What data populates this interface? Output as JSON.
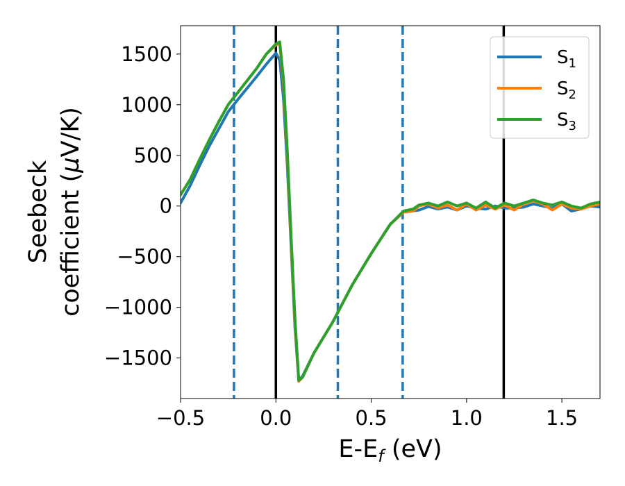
{
  "chart_data": {
    "type": "line",
    "title": "",
    "xlabel": "E-E",
    "xlabel_sub": "f",
    "xlabel_unit": " (eV)",
    "ylabel_line1": "Seebeck",
    "ylabel_line2": "coefficient  (",
    "ylabel_mu": "μ",
    "ylabel_unit": "V/K)",
    "xlim": [
      -0.5,
      1.7
    ],
    "ylim": [
      -1900,
      1780
    ],
    "xticks": [
      -0.5,
      0.0,
      0.5,
      1.0,
      1.5
    ],
    "xtick_labels": [
      "−0.5",
      "0.0",
      "0.5",
      "1.0",
      "1.5"
    ],
    "yticks": [
      -1500,
      -1000,
      -500,
      0,
      500,
      1000,
      1500
    ],
    "ytick_labels": [
      "−1500",
      "−1000",
      "−500",
      "0",
      "500",
      "1000",
      "1500"
    ],
    "grid": false,
    "legend_position": "top-right",
    "vertical_lines": [
      {
        "x": -0.22,
        "style": "dashed",
        "color": "#1f77b4"
      },
      {
        "x": 0.0,
        "style": "solid",
        "color": "#000000"
      },
      {
        "x": 0.325,
        "style": "dashed",
        "color": "#1f77b4"
      },
      {
        "x": 0.665,
        "style": "dashed",
        "color": "#1f77b4"
      },
      {
        "x": 1.195,
        "style": "solid",
        "color": "#000000"
      }
    ],
    "series": [
      {
        "name": "S",
        "sub": "1",
        "color": "#1f77b4",
        "points": [
          [
            -0.5,
            30
          ],
          [
            -0.45,
            200
          ],
          [
            -0.4,
            400
          ],
          [
            -0.35,
            590
          ],
          [
            -0.3,
            760
          ],
          [
            -0.25,
            930
          ],
          [
            -0.2,
            1050
          ],
          [
            -0.1,
            1280
          ],
          [
            -0.05,
            1400
          ],
          [
            0.0,
            1510
          ],
          [
            0.02,
            1440
          ],
          [
            0.04,
            1050
          ],
          [
            0.06,
            400
          ],
          [
            0.08,
            -400
          ],
          [
            0.1,
            -1200
          ],
          [
            0.12,
            -1720
          ],
          [
            0.14,
            -1680
          ],
          [
            0.2,
            -1450
          ],
          [
            0.3,
            -1140
          ],
          [
            0.4,
            -780
          ],
          [
            0.5,
            -470
          ],
          [
            0.6,
            -180
          ],
          [
            0.67,
            -60
          ],
          [
            0.75,
            -40
          ],
          [
            0.8,
            -5
          ],
          [
            0.85,
            -30
          ],
          [
            0.9,
            -10
          ],
          [
            0.95,
            -40
          ],
          [
            1.0,
            0
          ],
          [
            1.05,
            -20
          ],
          [
            1.1,
            -30
          ],
          [
            1.15,
            0
          ],
          [
            1.2,
            -20
          ],
          [
            1.25,
            -20
          ],
          [
            1.3,
            -10
          ],
          [
            1.35,
            20
          ],
          [
            1.4,
            0
          ],
          [
            1.45,
            -20
          ],
          [
            1.5,
            20
          ],
          [
            1.55,
            -50
          ],
          [
            1.6,
            -30
          ],
          [
            1.65,
            0
          ],
          [
            1.7,
            -10
          ]
        ]
      },
      {
        "name": "S",
        "sub": "2",
        "color": "#ff7f0e",
        "points": [
          [
            -0.5,
            110
          ],
          [
            -0.45,
            260
          ],
          [
            -0.4,
            460
          ],
          [
            -0.35,
            650
          ],
          [
            -0.3,
            830
          ],
          [
            -0.25,
            1000
          ],
          [
            -0.2,
            1120
          ],
          [
            -0.1,
            1360
          ],
          [
            -0.05,
            1500
          ],
          [
            0.0,
            1590
          ],
          [
            0.02,
            1600
          ],
          [
            0.04,
            1200
          ],
          [
            0.06,
            500
          ],
          [
            0.08,
            -350
          ],
          [
            0.1,
            -1150
          ],
          [
            0.12,
            -1730
          ],
          [
            0.14,
            -1690
          ],
          [
            0.2,
            -1450
          ],
          [
            0.3,
            -1140
          ],
          [
            0.4,
            -780
          ],
          [
            0.5,
            -470
          ],
          [
            0.6,
            -180
          ],
          [
            0.67,
            -60
          ],
          [
            0.72,
            -50
          ],
          [
            0.75,
            0
          ],
          [
            0.8,
            20
          ],
          [
            0.85,
            -20
          ],
          [
            0.9,
            10
          ],
          [
            0.95,
            -40
          ],
          [
            1.0,
            20
          ],
          [
            1.05,
            -40
          ],
          [
            1.1,
            10
          ],
          [
            1.15,
            -30
          ],
          [
            1.2,
            10
          ],
          [
            1.25,
            -40
          ],
          [
            1.3,
            20
          ],
          [
            1.35,
            50
          ],
          [
            1.4,
            20
          ],
          [
            1.45,
            -40
          ],
          [
            1.5,
            20
          ],
          [
            1.55,
            -20
          ],
          [
            1.6,
            -30
          ],
          [
            1.65,
            0
          ],
          [
            1.7,
            20
          ]
        ]
      },
      {
        "name": "S",
        "sub": "3",
        "color": "#2ca02c",
        "points": [
          [
            -0.5,
            110
          ],
          [
            -0.45,
            260
          ],
          [
            -0.4,
            460
          ],
          [
            -0.35,
            650
          ],
          [
            -0.3,
            830
          ],
          [
            -0.25,
            1000
          ],
          [
            -0.2,
            1120
          ],
          [
            -0.1,
            1360
          ],
          [
            -0.05,
            1500
          ],
          [
            0.0,
            1600
          ],
          [
            0.02,
            1620
          ],
          [
            0.04,
            1250
          ],
          [
            0.06,
            550
          ],
          [
            0.08,
            -300
          ],
          [
            0.1,
            -1100
          ],
          [
            0.12,
            -1720
          ],
          [
            0.14,
            -1690
          ],
          [
            0.2,
            -1450
          ],
          [
            0.3,
            -1140
          ],
          [
            0.4,
            -780
          ],
          [
            0.5,
            -470
          ],
          [
            0.6,
            -180
          ],
          [
            0.67,
            -50
          ],
          [
            0.72,
            -30
          ],
          [
            0.75,
            10
          ],
          [
            0.8,
            30
          ],
          [
            0.85,
            0
          ],
          [
            0.9,
            40
          ],
          [
            0.95,
            0
          ],
          [
            1.0,
            30
          ],
          [
            1.05,
            -20
          ],
          [
            1.1,
            40
          ],
          [
            1.15,
            -20
          ],
          [
            1.2,
            30
          ],
          [
            1.25,
            0
          ],
          [
            1.3,
            30
          ],
          [
            1.35,
            60
          ],
          [
            1.4,
            30
          ],
          [
            1.45,
            10
          ],
          [
            1.5,
            40
          ],
          [
            1.55,
            0
          ],
          [
            1.6,
            -20
          ],
          [
            1.65,
            20
          ],
          [
            1.7,
            40
          ]
        ]
      }
    ]
  }
}
